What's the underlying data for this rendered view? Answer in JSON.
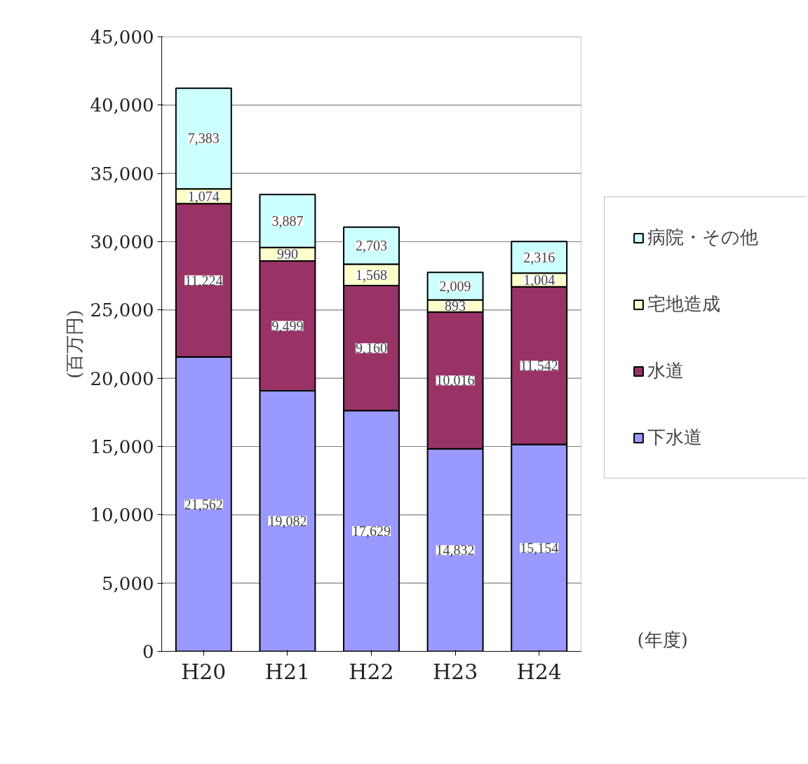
{
  "chart_data": {
    "type": "bar",
    "stacked": true,
    "xlabel": "(年度)",
    "ylabel": "(百万円)",
    "categories": [
      "H20",
      "H21",
      "H22",
      "H23",
      "H24"
    ],
    "series": [
      {
        "name": "下水道",
        "color": "#9999ff",
        "values": [
          21562,
          19082,
          17629,
          14832,
          15154
        ],
        "value_labels": [
          "21,562",
          "19,082",
          "17,629",
          "14,832",
          "15,154"
        ]
      },
      {
        "name": "水道",
        "color": "#993366",
        "values": [
          11224,
          9499,
          9160,
          10016,
          11542
        ],
        "value_labels": [
          "11,224",
          "9,499",
          "9,160",
          "10,016",
          "11,542"
        ]
      },
      {
        "name": "宅地造成",
        "color": "#ffffcc",
        "values": [
          1074,
          990,
          1568,
          893,
          1004
        ],
        "value_labels": [
          "1,074",
          "990",
          "1,568",
          "893",
          "1,004"
        ]
      },
      {
        "name": "病院・その他",
        "color": "#ccffff",
        "values": [
          7383,
          3887,
          2703,
          2009,
          2316
        ],
        "value_labels": [
          "7,383",
          "3,887",
          "2,703",
          "2,009",
          "2,316"
        ]
      }
    ],
    "ylim": [
      0,
      45000
    ],
    "yticks": [
      0,
      {
        "value": 5000,
        "label": "5,000"
      },
      {
        "value": 10000,
        "label": "10,000"
      },
      {
        "value": 15000,
        "label": "15,000"
      },
      {
        "value": 20000,
        "label": "20,000"
      },
      {
        "value": 25000,
        "label": "25,000"
      },
      {
        "value": 30000,
        "label": "30,000"
      },
      {
        "value": 35000,
        "label": "35,000"
      },
      {
        "value": 40000,
        "label": "40,000"
      },
      {
        "value": 45000,
        "label": "45,000"
      }
    ],
    "grid": "y",
    "legend": "right",
    "data_labels": true
  }
}
